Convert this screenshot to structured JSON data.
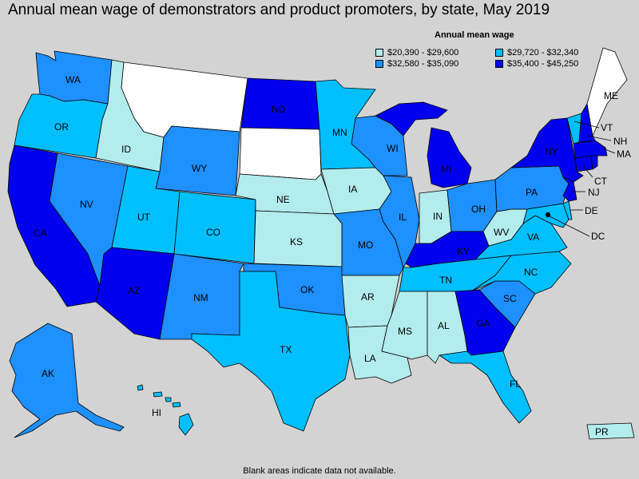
{
  "title": "Annual mean wage of demonstrators and product promoters, by state, May 2019",
  "legend": {
    "title": "Annual mean wage",
    "bins": [
      {
        "label": "$20,390 - $29,600",
        "color": "#b3ecec"
      },
      {
        "label": "$29,720 - $32,340",
        "color": "#00bfff"
      },
      {
        "label": "$32,580 - $35,090",
        "color": "#1e90ff"
      },
      {
        "label": "$35,400 - $45,250",
        "color": "#0000ee"
      }
    ]
  },
  "no_data_color": "#ffffff",
  "footnote": "Blank areas indicate data not available.",
  "states": {
    "WA": {
      "label": "WA",
      "bin": 2
    },
    "OR": {
      "label": "OR",
      "bin": 1
    },
    "CA": {
      "label": "CA",
      "bin": 3
    },
    "NV": {
      "label": "NV",
      "bin": 2
    },
    "ID": {
      "label": "ID",
      "bin": 0
    },
    "MT": {
      "label": "",
      "bin": null
    },
    "WY": {
      "label": "WY",
      "bin": 2
    },
    "UT": {
      "label": "UT",
      "bin": 1
    },
    "AZ": {
      "label": "AZ",
      "bin": 3
    },
    "CO": {
      "label": "CO",
      "bin": 1
    },
    "NM": {
      "label": "NM",
      "bin": 2
    },
    "ND": {
      "label": "ND",
      "bin": 3
    },
    "SD": {
      "label": "",
      "bin": null
    },
    "NE": {
      "label": "NE",
      "bin": 0
    },
    "KS": {
      "label": "KS",
      "bin": 0
    },
    "OK": {
      "label": "OK",
      "bin": 2
    },
    "TX": {
      "label": "TX",
      "bin": 1
    },
    "MN": {
      "label": "MN",
      "bin": 1
    },
    "IA": {
      "label": "IA",
      "bin": 0
    },
    "MO": {
      "label": "MO",
      "bin": 2
    },
    "AR": {
      "label": "AR",
      "bin": 0
    },
    "LA": {
      "label": "LA",
      "bin": 0
    },
    "WI": {
      "label": "WI",
      "bin": 2
    },
    "IL": {
      "label": "IL",
      "bin": 2
    },
    "MI": {
      "label": "MI",
      "bin": 3
    },
    "IN": {
      "label": "IN",
      "bin": 0
    },
    "OH": {
      "label": "OH",
      "bin": 2
    },
    "KY": {
      "label": "KY",
      "bin": 3
    },
    "TN": {
      "label": "TN",
      "bin": 1
    },
    "MS": {
      "label": "MS",
      "bin": 0
    },
    "AL": {
      "label": "AL",
      "bin": 0
    },
    "GA": {
      "label": "GA",
      "bin": 3
    },
    "FL": {
      "label": "FL",
      "bin": 1
    },
    "SC": {
      "label": "SC",
      "bin": 2
    },
    "NC": {
      "label": "NC",
      "bin": 1
    },
    "VA": {
      "label": "VA",
      "bin": 1
    },
    "WV": {
      "label": "WV",
      "bin": 0
    },
    "PA": {
      "label": "PA",
      "bin": 2
    },
    "NY": {
      "label": "NY",
      "bin": 3
    },
    "NJ": {
      "label": "NJ",
      "bin": 3
    },
    "DE": {
      "label": "DE",
      "bin": 1
    },
    "MD": {
      "label": "",
      "bin": 1
    },
    "DC": {
      "label": "DC",
      "bin": null
    },
    "CT": {
      "label": "CT",
      "bin": 3
    },
    "RI": {
      "label": "",
      "bin": 3
    },
    "MA": {
      "label": "MA",
      "bin": 3
    },
    "VT": {
      "label": "VT",
      "bin": 1
    },
    "NH": {
      "label": "NH",
      "bin": 3
    },
    "ME": {
      "label": "ME",
      "bin": null
    },
    "AK": {
      "label": "AK",
      "bin": 2
    },
    "HI": {
      "label": "HI",
      "bin": 1
    },
    "PR": {
      "label": "PR",
      "bin": 0
    }
  }
}
